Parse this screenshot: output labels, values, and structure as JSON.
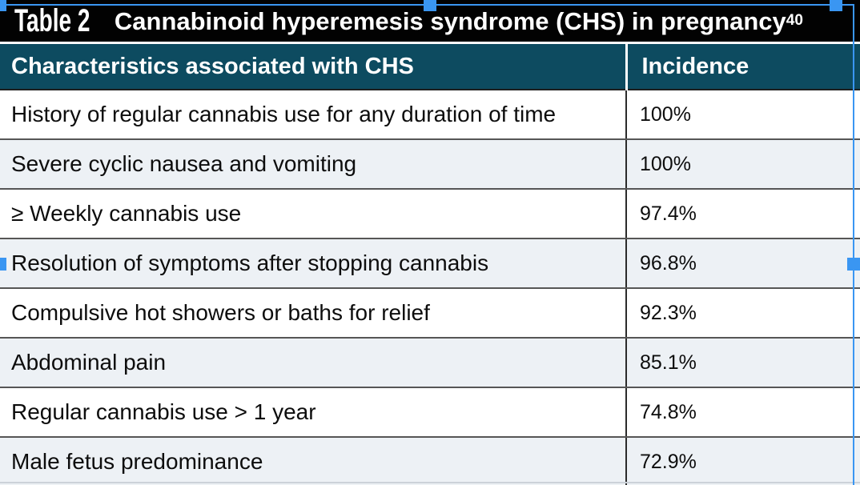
{
  "title_bar": {
    "label": "Table 2",
    "title": "Cannabinoid hyperemesis syndrome (CHS) in pregnancy",
    "reference_superscript": "40"
  },
  "table": {
    "columns": [
      "Characteristics associated with CHS",
      "Incidence"
    ],
    "rows": [
      {
        "characteristic": "History of regular cannabis use for any duration of time",
        "incidence": "100%"
      },
      {
        "characteristic": "Severe cyclic nausea and vomiting",
        "incidence": "100%"
      },
      {
        "characteristic": "≥ Weekly cannabis use",
        "incidence": "97.4%"
      },
      {
        "characteristic": "Resolution of symptoms after stopping cannabis",
        "incidence": "96.8%"
      },
      {
        "characteristic": "Compulsive hot showers or baths for relief",
        "incidence": "92.3%"
      },
      {
        "characteristic": "Abdominal pain",
        "incidence": "85.1%"
      },
      {
        "characteristic": "Regular cannabis use > 1 year",
        "incidence": "74.8%"
      },
      {
        "characteristic": "Male fetus predominance",
        "incidence": "72.9%"
      }
    ]
  },
  "chart_data": {
    "type": "table",
    "title": "Cannabinoid hyperemesis syndrome (CHS) in pregnancy",
    "categories": [
      "History of regular cannabis use for any duration of time",
      "Severe cyclic nausea and vomiting",
      "≥ Weekly cannabis use",
      "Resolution of symptoms after stopping cannabis",
      "Compulsive hot showers or baths for relief",
      "Abdominal pain",
      "Regular cannabis use > 1 year",
      "Male fetus predominance"
    ],
    "values": [
      100,
      100,
      97.4,
      96.8,
      92.3,
      85.1,
      74.8,
      72.9
    ],
    "value_unit": "%"
  },
  "colors": {
    "title_bar_bg": "#020202",
    "header_bg": "#0d4b60",
    "row_alt_bg": "#edf1f5",
    "row_bg": "#ffffff",
    "row_border": "#565656",
    "selection_blue": "#3a96f2"
  },
  "selection": {
    "handles": [
      "top-left",
      "top-center",
      "top-right",
      "middle-left",
      "middle-right"
    ]
  }
}
